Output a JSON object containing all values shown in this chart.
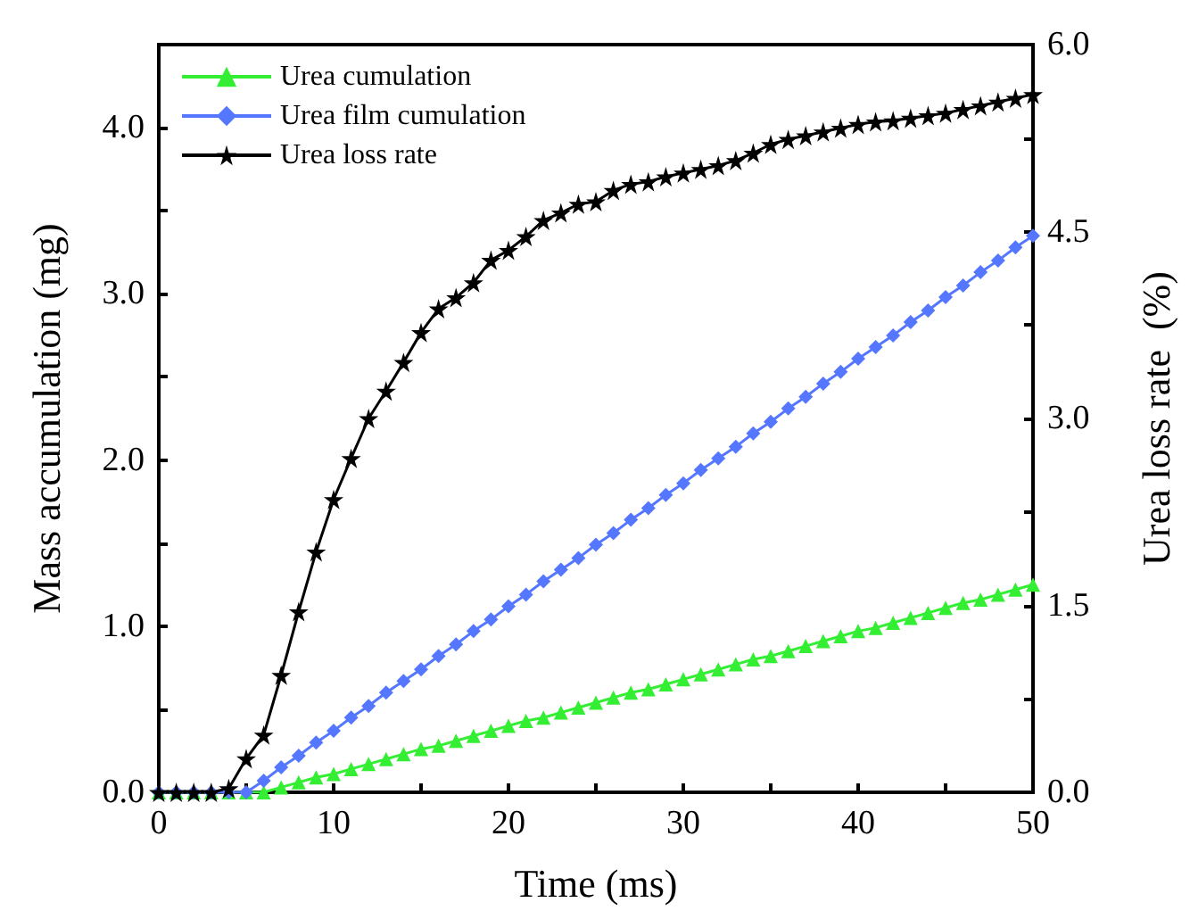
{
  "chart_data": {
    "type": "line",
    "x": [
      0,
      1,
      2,
      3,
      4,
      5,
      6,
      7,
      8,
      9,
      10,
      11,
      12,
      13,
      14,
      15,
      16,
      17,
      18,
      19,
      20,
      21,
      22,
      23,
      24,
      25,
      26,
      27,
      28,
      29,
      30,
      31,
      32,
      33,
      34,
      35,
      36,
      37,
      38,
      39,
      40,
      41,
      42,
      43,
      44,
      45,
      46,
      47,
      48,
      49,
      50
    ],
    "series": [
      {
        "name": "Urea cumulation",
        "color": "#33ee33",
        "marker": "triangle",
        "values": [
          0,
          0,
          0,
          0,
          0,
          0,
          0,
          0.03,
          0.06,
          0.09,
          0.11,
          0.14,
          0.17,
          0.2,
          0.23,
          0.26,
          0.28,
          0.31,
          0.34,
          0.37,
          0.4,
          0.43,
          0.45,
          0.48,
          0.51,
          0.54,
          0.57,
          0.6,
          0.62,
          0.65,
          0.68,
          0.71,
          0.74,
          0.77,
          0.8,
          0.82,
          0.85,
          0.88,
          0.91,
          0.94,
          0.97,
          0.99,
          1.02,
          1.05,
          1.08,
          1.11,
          1.14,
          1.16,
          1.19,
          1.22,
          1.25
        ]
      },
      {
        "name": "Urea film cumulation",
        "color": "#5577ff",
        "marker": "diamond",
        "values": [
          0,
          0,
          0,
          0,
          0,
          0,
          0.07,
          0.15,
          0.22,
          0.3,
          0.37,
          0.45,
          0.52,
          0.6,
          0.67,
          0.74,
          0.82,
          0.89,
          0.97,
          1.04,
          1.12,
          1.19,
          1.27,
          1.34,
          1.41,
          1.49,
          1.56,
          1.64,
          1.71,
          1.79,
          1.86,
          1.94,
          2.01,
          2.08,
          2.16,
          2.23,
          2.31,
          2.38,
          2.46,
          2.53,
          2.61,
          2.68,
          2.75,
          2.83,
          2.9,
          2.98,
          3.05,
          3.13,
          3.2,
          3.28,
          3.35
        ]
      },
      {
        "name": "Urea loss rate",
        "color": "#000000",
        "marker": "star",
        "axis": "y2",
        "values": [
          0,
          0,
          0,
          0,
          0.03,
          0.27,
          0.46,
          0.94,
          1.45,
          1.93,
          2.35,
          2.68,
          3.0,
          3.22,
          3.45,
          3.69,
          3.88,
          3.97,
          4.09,
          4.27,
          4.35,
          4.46,
          4.59,
          4.65,
          4.72,
          4.74,
          4.83,
          4.88,
          4.9,
          4.94,
          4.97,
          5.0,
          5.03,
          5.07,
          5.13,
          5.2,
          5.24,
          5.27,
          5.3,
          5.33,
          5.36,
          5.38,
          5.39,
          5.41,
          5.43,
          5.45,
          5.48,
          5.51,
          5.54,
          5.57,
          5.6
        ]
      }
    ],
    "xlabel": "Time (ms)",
    "ylabel": "Mass accumulation (mg)",
    "y2label": "Urea loss rate  (%)",
    "xlim": [
      0,
      50
    ],
    "xticks": [
      0,
      {
        "value": 5,
        "label": null
      },
      10,
      {
        "value": 15,
        "label": null
      },
      20,
      {
        "value": 25,
        "label": null
      },
      30,
      {
        "value": 35,
        "label": null
      },
      40,
      {
        "value": 45,
        "label": null
      },
      50
    ],
    "ylim": [
      0,
      4.5
    ],
    "yticks": [
      {
        "value": 0,
        "label": "0.0"
      },
      {
        "value": 0.5,
        "label": null
      },
      {
        "value": 1,
        "label": "1.0"
      },
      {
        "value": 1.5,
        "label": null
      },
      {
        "value": 2,
        "label": "2.0"
      },
      {
        "value": 2.5,
        "label": null
      },
      {
        "value": 3,
        "label": "3.0"
      },
      {
        "value": 3.5,
        "label": null
      },
      {
        "value": 4,
        "label": "4.0"
      }
    ],
    "y2lim": [
      0,
      6
    ],
    "y2ticks": [
      {
        "value": 0,
        "label": "0.0"
      },
      {
        "value": 0.75,
        "label": null
      },
      {
        "value": 1.5,
        "label": "1.5"
      },
      {
        "value": 2.25,
        "label": null
      },
      {
        "value": 3,
        "label": "3.0"
      },
      {
        "value": 3.75,
        "label": null
      },
      {
        "value": 4.5,
        "label": "4.5"
      },
      {
        "value": 5.25,
        "label": null
      },
      {
        "value": 6,
        "label": "6.0"
      }
    ],
    "legend": "top left",
    "grid": false
  }
}
